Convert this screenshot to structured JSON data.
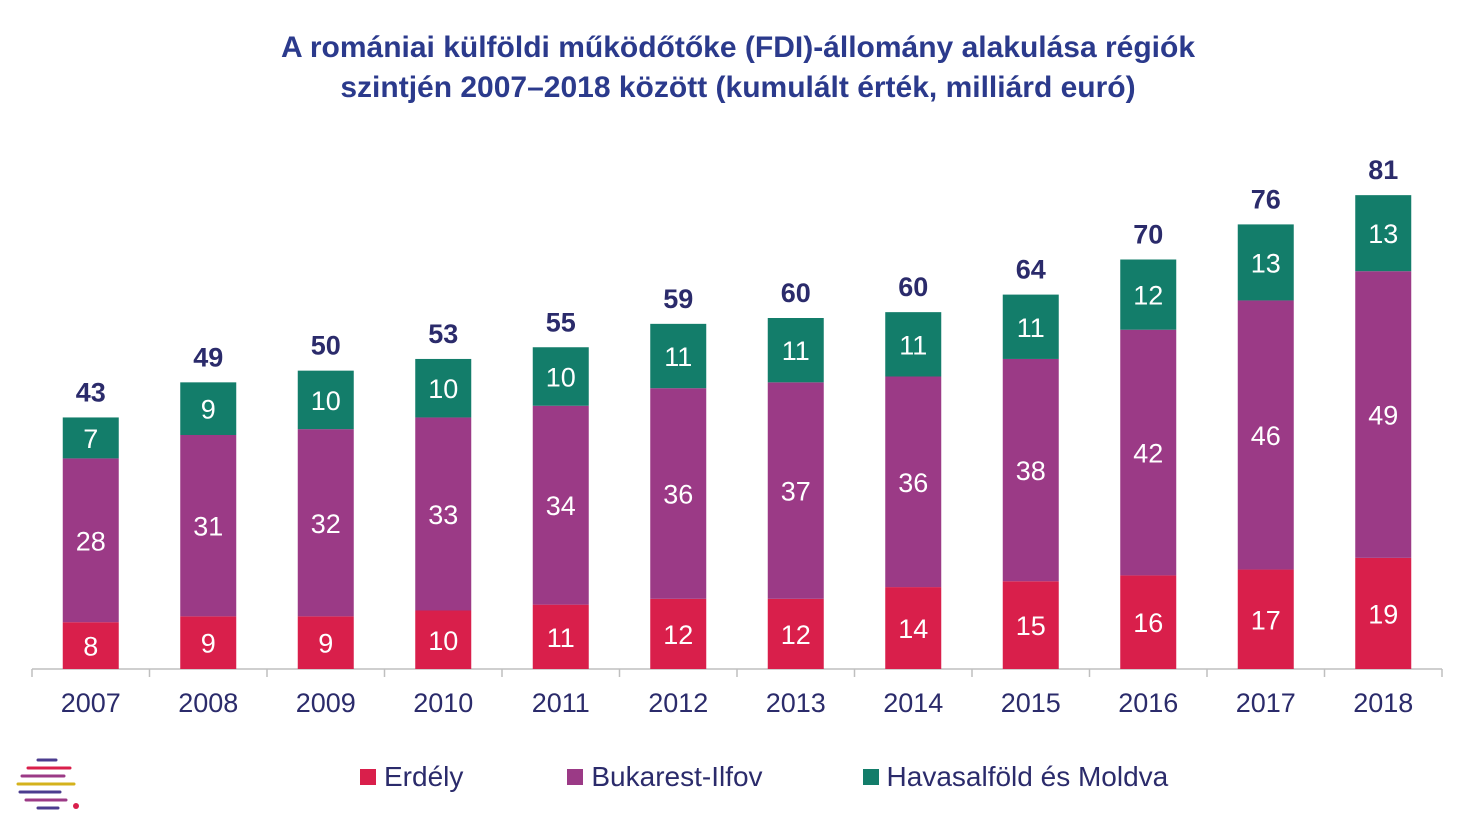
{
  "chart_data": {
    "type": "stacked-bar",
    "title_lines": [
      "A romániai külföldi működőtőke (FDI)-állomány alakulása régiók",
      "szintjén 2007–2018 között (kumulált érték, milliárd euró)"
    ],
    "categories": [
      "2007",
      "2008",
      "2009",
      "2010",
      "2011",
      "2012",
      "2013",
      "2014",
      "2015",
      "2016",
      "2017",
      "2018"
    ],
    "series": [
      {
        "name": "Erdély",
        "color": "#d91f4b",
        "values": [
          8,
          9,
          9,
          10,
          11,
          12,
          12,
          14,
          15,
          16,
          17,
          19
        ]
      },
      {
        "name": "Bukarest-Ilfov",
        "color": "#9b3a86",
        "values": [
          28,
          31,
          32,
          33,
          34,
          36,
          37,
          36,
          38,
          42,
          46,
          49
        ]
      },
      {
        "name": "Havasalföld és Moldva",
        "color": "#137d6a",
        "values": [
          7,
          9,
          10,
          10,
          10,
          11,
          11,
          11,
          11,
          12,
          13,
          13
        ]
      }
    ],
    "totals": [
      43,
      49,
      50,
      53,
      55,
      59,
      60,
      60,
      64,
      70,
      76,
      81
    ],
    "legend_position": "bottom",
    "grid": false
  }
}
